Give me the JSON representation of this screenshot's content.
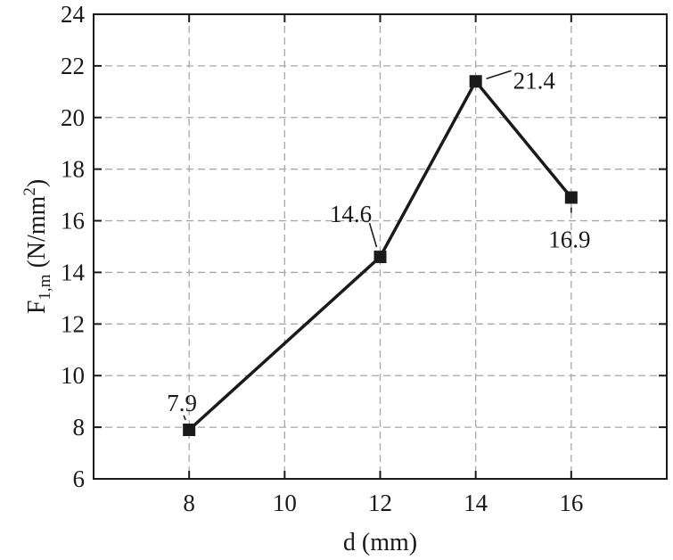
{
  "chart_data": {
    "type": "line",
    "title": "",
    "xlabel": "d (mm)",
    "ylabel": {
      "main": "F",
      "subscript": "1,m",
      "unit_prefix": " (N/mm",
      "superscript": "2",
      "unit_suffix": ")"
    },
    "x": [
      8,
      12,
      14,
      16
    ],
    "series": [
      {
        "values": [
          7.9,
          14.6,
          21.4,
          16.9
        ],
        "labels": [
          "7.9",
          "14.6",
          "21.4",
          "16.9"
        ],
        "color": "#1a1a1a",
        "marker": "square"
      }
    ],
    "xlim": [
      6,
      18
    ],
    "ylim": [
      6,
      24
    ],
    "xticks": [
      8,
      10,
      12,
      14,
      16
    ],
    "yticks": [
      6,
      8,
      10,
      12,
      14,
      16,
      18,
      20,
      22,
      24
    ],
    "grid": true,
    "legend": "none"
  }
}
